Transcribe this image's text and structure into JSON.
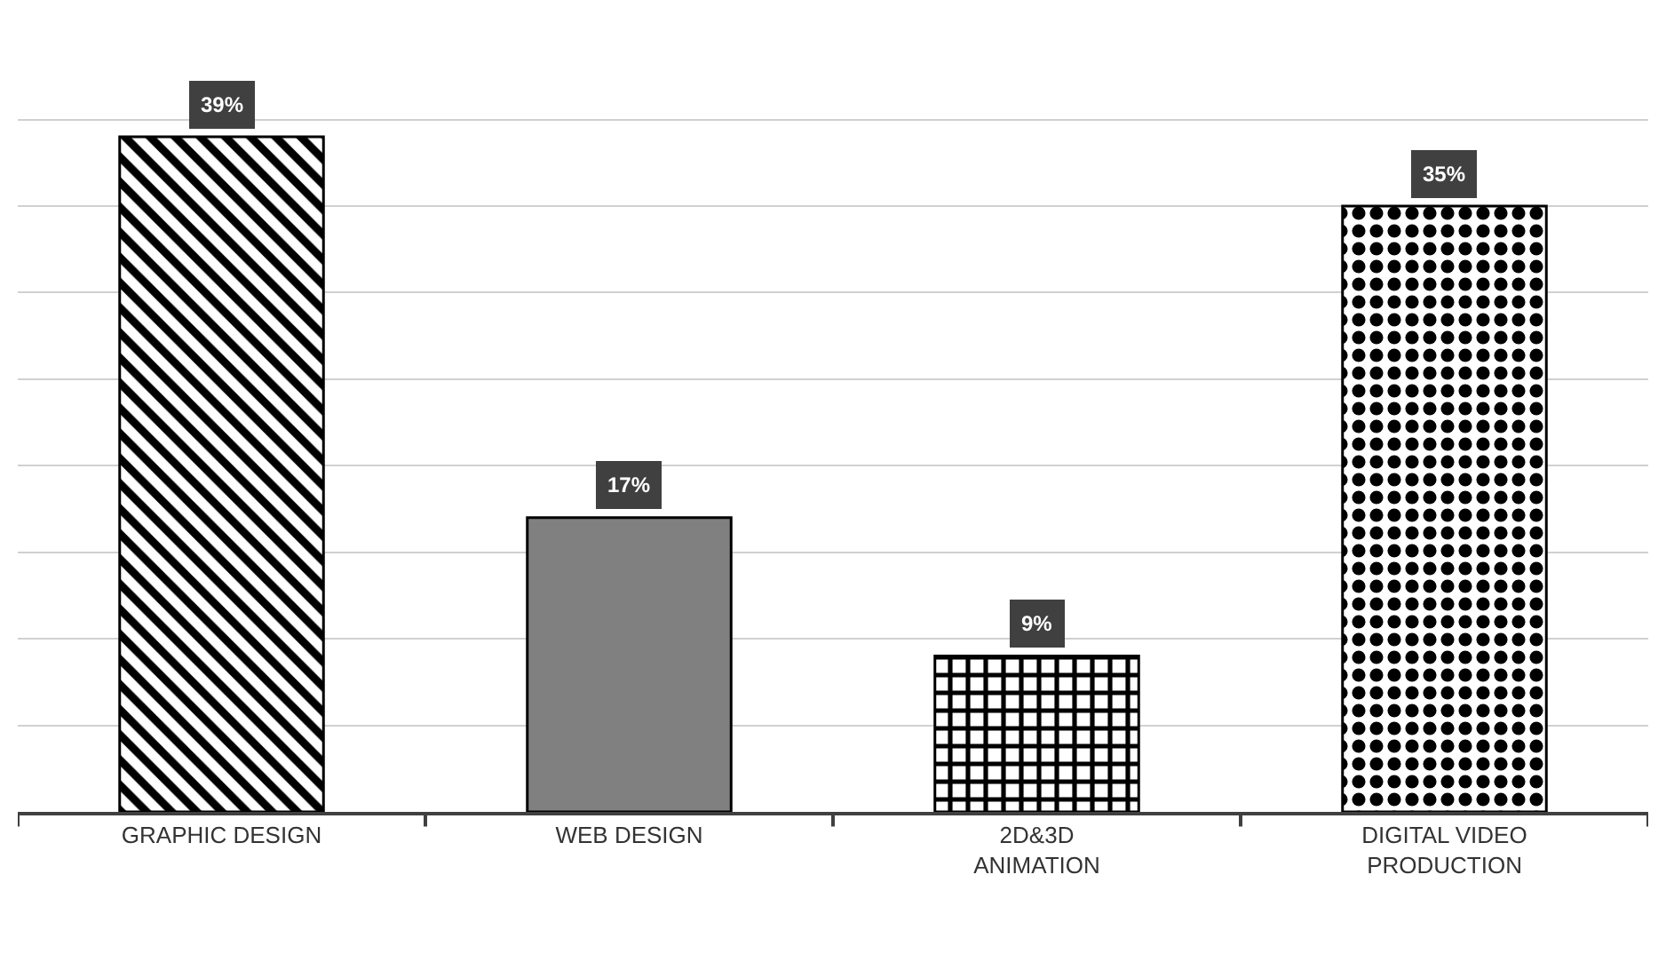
{
  "chart_data": {
    "type": "bar",
    "categories": [
      "GRAPHIC DESIGN",
      "WEB DESIGN",
      "2D&3D ANIMATION",
      "DIGITAL VIDEO PRODUCTION"
    ],
    "values": [
      39,
      17,
      9,
      35
    ],
    "value_labels": [
      "39%",
      "17%",
      "9%",
      "35%"
    ],
    "colors": [
      "#000000",
      "#808080",
      "#000000",
      "#000000"
    ],
    "grid": "y",
    "tick_labels": "x"
  }
}
